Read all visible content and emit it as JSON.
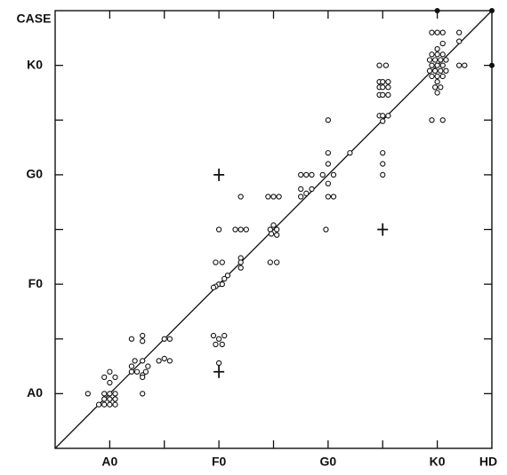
{
  "chart_data": {
    "type": "scatter",
    "x_label": "HD",
    "y_label": "CASE",
    "xlim": [
      -5,
      35
    ],
    "ylim": [
      -5,
      35
    ],
    "xticks": [
      {
        "value": 0,
        "label": "A0"
      },
      {
        "value": 10,
        "label": "F0"
      },
      {
        "value": 20,
        "label": "G0"
      },
      {
        "value": 30,
        "label": "K0"
      }
    ],
    "yticks": [
      {
        "value": 0,
        "label": "A0"
      },
      {
        "value": 10,
        "label": "F0"
      },
      {
        "value": 20,
        "label": "G0"
      },
      {
        "value": 30,
        "label": "K0"
      }
    ],
    "xminorticks": [
      5,
      15,
      25
    ],
    "yminorticks": [
      5,
      15,
      25
    ],
    "diagonal": true,
    "color": "#111111",
    "series": [
      {
        "marker": "circle",
        "x": [
          -2,
          -1,
          0,
          0.5,
          -0.5,
          0,
          -0.5,
          0.5,
          0,
          -0.5,
          0.5,
          0,
          -0.5,
          0.5,
          0,
          2,
          2,
          2.3,
          3,
          2.5,
          3,
          3.3,
          3.5,
          3,
          3,
          2,
          3,
          3,
          4.5,
          5,
          5.5,
          5,
          5.5,
          10,
          9.5,
          10.5,
          9.7,
          10.3,
          10,
          10,
          9.7,
          10.3,
          10.5,
          9.5,
          10.8,
          9.7,
          10.3,
          10,
          12,
          11.5,
          12,
          12.5,
          12,
          12,
          12,
          14.5,
          15,
          15.5,
          14.7,
          15,
          15.3,
          14.8,
          15.3,
          14.7,
          15.3,
          17.5,
          18,
          18.5,
          17.5,
          18,
          18.5,
          17.5,
          20,
          20,
          20,
          19.5,
          20.5,
          20,
          20,
          20.5,
          19.8,
          22,
          24.7,
          25.3,
          24.7,
          25,
          25.5,
          24.7,
          25,
          25.5,
          24.7,
          25,
          25.5,
          24.7,
          25,
          25.5,
          25,
          25,
          25,
          25,
          29.5,
          30,
          30.5,
          29.3,
          29.8,
          30.3,
          30.8,
          29.5,
          30,
          30.5,
          29.3,
          29.8,
          30.3,
          30.8,
          29.5,
          30,
          30.5,
          30,
          29.8,
          30.3,
          30,
          30,
          30.5,
          30,
          29.5,
          30.5,
          29.5,
          30.5,
          32,
          32,
          32,
          32.5
        ],
        "values": [
          0,
          -1,
          0,
          0,
          0,
          -0.5,
          -0.5,
          -0.5,
          -1,
          -1,
          -1,
          2,
          1.5,
          1.5,
          1,
          2,
          2.5,
          3,
          3,
          2,
          1.7,
          2,
          2.5,
          1.5,
          0,
          5,
          5.3,
          4.8,
          3,
          3.2,
          3,
          5,
          5,
          5,
          5.3,
          5.3,
          4.5,
          4.5,
          2.8,
          10,
          9.8,
          10,
          10.5,
          9.7,
          10.8,
          12,
          12,
          15,
          18,
          15,
          15,
          15,
          12.4,
          12,
          11.5,
          18,
          18,
          18,
          15,
          15.4,
          15,
          14.6,
          14.5,
          12,
          12,
          20,
          20,
          20,
          18.7,
          18.3,
          18.7,
          18,
          22,
          21,
          25,
          20,
          20,
          19.2,
          18,
          18,
          15,
          22,
          30,
          30,
          28.5,
          28.5,
          28.5,
          28,
          28,
          28,
          27.3,
          27.3,
          27.3,
          25.4,
          25.4,
          25.4,
          24.9,
          22,
          21,
          20,
          31,
          31,
          31,
          30.5,
          30.5,
          30.5,
          30.5,
          30,
          30,
          30,
          29.5,
          29.5,
          29.5,
          29.5,
          29,
          29,
          29,
          28.5,
          28,
          28,
          27.5,
          31.5,
          32,
          33,
          33,
          33,
          25,
          25,
          33,
          32.2,
          30,
          30
        ]
      },
      {
        "marker": "cross",
        "x": [
          10,
          10,
          25
        ],
        "values": [
          2,
          20,
          15
        ]
      },
      {
        "marker": "filled",
        "x": [
          30,
          35,
          35
        ],
        "values": [
          35,
          35,
          30
        ]
      }
    ]
  }
}
